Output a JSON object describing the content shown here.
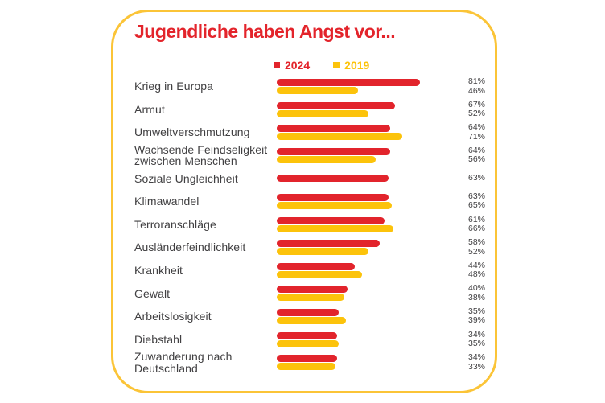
{
  "card": {
    "title": "Jugendliche haben Angst vor..."
  },
  "legend": {
    "items": [
      {
        "label": "2024",
        "color": "#E2242C"
      },
      {
        "label": "2019",
        "color": "#FCC30B"
      }
    ]
  },
  "colors": {
    "red_2024": "#E2242C",
    "yellow_2019": "#FCC30B",
    "card_border": "#FBC437",
    "title_red": "#E3242B",
    "label_text": "#414042"
  },
  "chart_data": {
    "type": "bar",
    "orientation": "horizontal",
    "title": "Jugendliche haben Angst vor...",
    "unit": "%",
    "xlim": [
      0,
      100
    ],
    "legend_position": "top",
    "grid": false,
    "categories": [
      "Krieg in Europa",
      "Armut",
      "Umweltverschmutzung",
      "Wachsende Feindseligkeit\nzwischen Menschen",
      "Soziale Ungleichheit",
      "Klimawandel",
      "Terroranschläge",
      "Ausländerfeindlichkeit",
      "Krankheit",
      "Gewalt",
      "Arbeitslosigkeit",
      "Diebstahl",
      "Zuwanderung nach\nDeutschland"
    ],
    "series": [
      {
        "name": "2024",
        "values": [
          81,
          67,
          64,
          64,
          63,
          63,
          61,
          58,
          44,
          40,
          35,
          34,
          34
        ]
      },
      {
        "name": "2019",
        "values": [
          46,
          52,
          71,
          56,
          null,
          65,
          66,
          52,
          48,
          38,
          39,
          35,
          33
        ]
      }
    ]
  }
}
